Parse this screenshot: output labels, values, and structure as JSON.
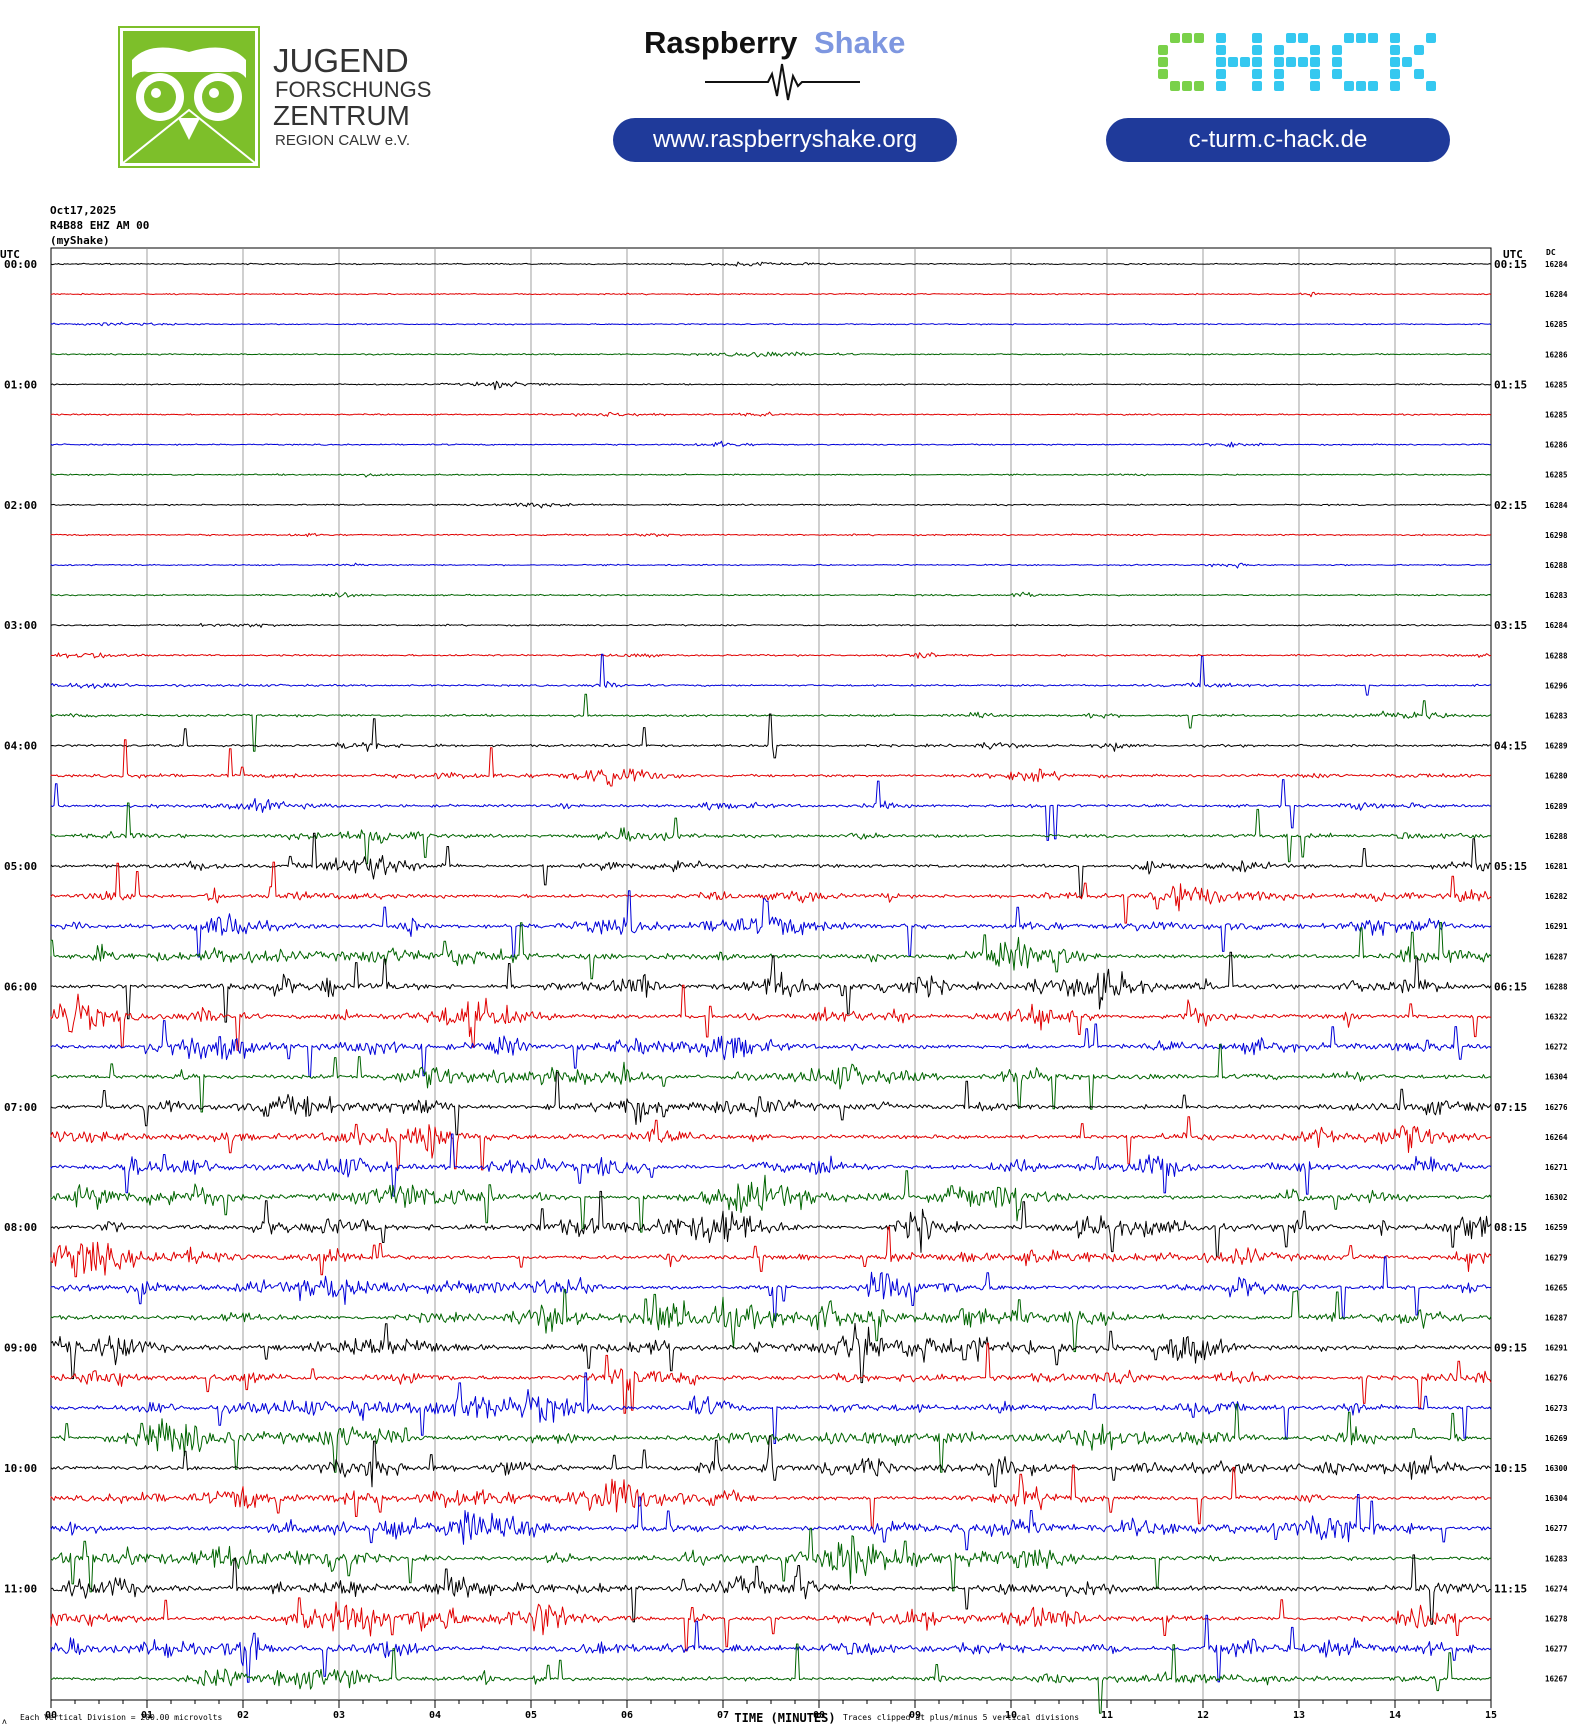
{
  "logos": {
    "jfz": {
      "line1": "JUGEND",
      "line2": "FORSCHUNGS",
      "line3": "ZENTRUM",
      "line4": "REGION CALW e.V.",
      "color": "#7dbf2a"
    },
    "raspberry": {
      "word1": "Raspberry",
      "word2": "Shake",
      "url": "www.raspberryshake.org",
      "word2_color": "#7e97e0",
      "pill_color": "#1f3a9a"
    },
    "chack": {
      "logo_text": "CHACK",
      "url": "c-turm.c-hack.de",
      "green": "#7ad14a",
      "cyan": "#35c8f0",
      "pill_color": "#1f3a9a"
    }
  },
  "header": {
    "date": "Oct17,2025",
    "station": "R4B88 EHZ AM 00",
    "source": "(myShake)"
  },
  "chart_data": {
    "type": "line",
    "title": "",
    "xlabel": "TIME (MINUTES)",
    "left_axis_label": "UTC",
    "right_axis_label": "UTC",
    "dc_label": "DC",
    "xlim": [
      0,
      15
    ],
    "x_ticks": [
      "00",
      "01",
      "02",
      "03",
      "04",
      "05",
      "06",
      "07",
      "08",
      "09",
      "10",
      "11",
      "12",
      "13",
      "14",
      "15"
    ],
    "left_time_labels": [
      "00:00",
      "01:00",
      "02:00",
      "03:00",
      "04:00",
      "05:00",
      "06:00",
      "07:00",
      "08:00",
      "09:00",
      "10:00",
      "11:00"
    ],
    "right_time_labels": [
      "00:15",
      "01:15",
      "02:15",
      "03:15",
      "04:15",
      "05:15",
      "06:15",
      "07:15",
      "08:15",
      "09:15",
      "10:15",
      "11:15"
    ],
    "trace_colors": [
      "#000000",
      "#e00000",
      "#0000d8",
      "#006400"
    ],
    "dc_values": [
      "16284",
      "16284",
      "16285",
      "16286",
      "16285",
      "16285",
      "16286",
      "16285",
      "16284",
      "16298",
      "16288",
      "16283",
      "16284",
      "16288",
      "16296",
      "16283",
      "16289",
      "16280",
      "16289",
      "16288",
      "16281",
      "16282",
      "16291",
      "16287",
      "16288",
      "16322",
      "16272",
      "16304",
      "16276",
      "16264",
      "16271",
      "16302",
      "16259",
      "16279",
      "16265",
      "16287",
      "16291",
      "16276",
      "16273",
      "16269",
      "16300",
      "16304",
      "16277",
      "16283",
      "16274",
      "16278",
      "16277",
      "16267"
    ],
    "activity_level": [
      0.25,
      0.25,
      0.25,
      0.3,
      0.25,
      0.3,
      0.3,
      0.3,
      0.3,
      0.4,
      0.3,
      0.35,
      0.35,
      0.5,
      0.55,
      0.7,
      0.8,
      0.9,
      1.0,
      1.1,
      1.2,
      1.35,
      1.45,
      1.5,
      1.6,
      1.6,
      1.6,
      1.55,
      1.5,
      1.5,
      1.55,
      1.7,
      1.7,
      1.55,
      1.6,
      1.7,
      1.7,
      1.6,
      1.6,
      1.65,
      1.6,
      1.55,
      1.6,
      1.65,
      1.7,
      1.6,
      1.5,
      1.5
    ],
    "scale_note": "Each Vertical Division =  200.00 microvolts",
    "clip_note": "Traces clipped at plus/minus 5 vertical divisions"
  }
}
